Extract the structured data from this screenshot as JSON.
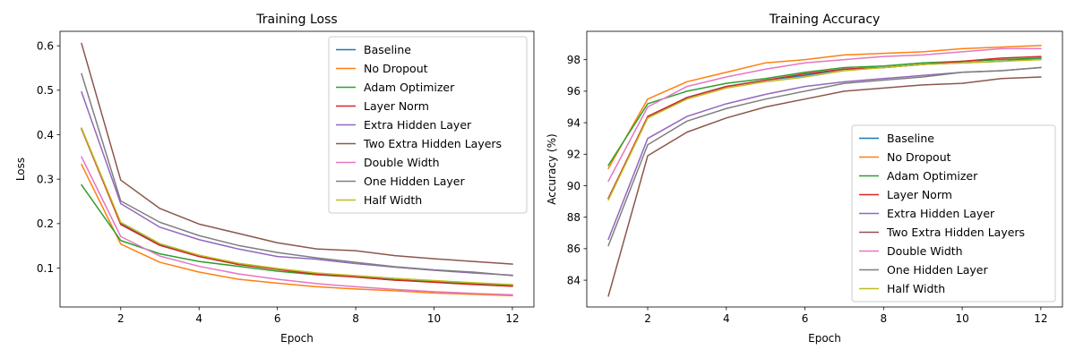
{
  "chart_data": [
    {
      "type": "line",
      "title": "Training Loss",
      "xlabel": "Epoch",
      "ylabel": "Loss",
      "xlim": [
        0.45,
        12.55
      ],
      "ylim": [
        0.0125,
        0.6325
      ],
      "xticks": [
        2,
        4,
        6,
        8,
        10,
        12
      ],
      "yticks": [
        0.1,
        0.2,
        0.3,
        0.4,
        0.5,
        0.6
      ],
      "ytick_labels": [
        "0.1",
        "0.2",
        "0.3",
        "0.4",
        "0.5",
        "0.6"
      ],
      "legend_position": "top-right",
      "grid": false,
      "x": [
        1,
        2,
        3,
        4,
        5,
        6,
        7,
        8,
        9,
        10,
        11,
        12
      ],
      "series": [
        {
          "name": "Baseline",
          "color": "#1f77b4",
          "values": [
            0.413,
            0.2,
            0.152,
            0.127,
            0.109,
            0.098,
            0.087,
            0.081,
            0.074,
            0.069,
            0.064,
            0.06
          ]
        },
        {
          "name": "No Dropout",
          "color": "#ff7f0e",
          "values": [
            0.333,
            0.154,
            0.113,
            0.091,
            0.075,
            0.066,
            0.058,
            0.053,
            0.049,
            0.044,
            0.041,
            0.038
          ]
        },
        {
          "name": "Adam Optimizer",
          "color": "#2ca02c",
          "values": [
            0.287,
            0.162,
            0.132,
            0.115,
            0.104,
            0.093,
            0.085,
            0.08,
            0.073,
            0.07,
            0.066,
            0.062
          ]
        },
        {
          "name": "Layer Norm",
          "color": "#d62728",
          "values": [
            0.413,
            0.198,
            0.151,
            0.126,
            0.108,
            0.097,
            0.086,
            0.08,
            0.073,
            0.068,
            0.063,
            0.059
          ]
        },
        {
          "name": "Extra Hidden Layer",
          "color": "#9467bd",
          "values": [
            0.496,
            0.245,
            0.192,
            0.164,
            0.143,
            0.126,
            0.12,
            0.11,
            0.102,
            0.095,
            0.089,
            0.084
          ]
        },
        {
          "name": "Two Extra Hidden Layers",
          "color": "#8c564b",
          "values": [
            0.605,
            0.298,
            0.234,
            0.199,
            0.178,
            0.157,
            0.143,
            0.139,
            0.128,
            0.121,
            0.115,
            0.109
          ]
        },
        {
          "name": "Double Width",
          "color": "#e377c2",
          "values": [
            0.35,
            0.171,
            0.127,
            0.104,
            0.087,
            0.075,
            0.065,
            0.058,
            0.052,
            0.047,
            0.043,
            0.04
          ]
        },
        {
          "name": "One Hidden Layer",
          "color": "#7f7f7f",
          "values": [
            0.537,
            0.251,
            0.203,
            0.173,
            0.151,
            0.135,
            0.123,
            0.113,
            0.103,
            0.096,
            0.091,
            0.083
          ]
        },
        {
          "name": "Half Width",
          "color": "#bcbd22",
          "values": [
            0.415,
            0.203,
            0.155,
            0.129,
            0.111,
            0.099,
            0.089,
            0.083,
            0.077,
            0.072,
            0.067,
            0.063
          ]
        }
      ]
    },
    {
      "type": "line",
      "title": "Training Accuracy",
      "xlabel": "Epoch",
      "ylabel": "Accuracy (%)",
      "xlim": [
        0.45,
        12.55
      ],
      "ylim": [
        82.3,
        99.8
      ],
      "xticks": [
        2,
        4,
        6,
        8,
        10,
        12
      ],
      "yticks": [
        84,
        86,
        88,
        90,
        92,
        94,
        96,
        98
      ],
      "ytick_labels": [
        "84",
        "86",
        "88",
        "90",
        "92",
        "94",
        "96",
        "98"
      ],
      "legend_position": "lower-right",
      "grid": false,
      "x": [
        1,
        2,
        3,
        4,
        5,
        6,
        7,
        8,
        9,
        10,
        11,
        12
      ],
      "series": [
        {
          "name": "Baseline",
          "color": "#1f77b4",
          "values": [
            89.2,
            94.3,
            95.6,
            96.3,
            96.7,
            97.0,
            97.4,
            97.5,
            97.7,
            97.8,
            97.9,
            98.1
          ]
        },
        {
          "name": "No Dropout",
          "color": "#ff7f0e",
          "values": [
            91.1,
            95.5,
            96.6,
            97.2,
            97.8,
            98.0,
            98.3,
            98.4,
            98.5,
            98.7,
            98.8,
            98.9
          ]
        },
        {
          "name": "Adam Optimizer",
          "color": "#2ca02c",
          "values": [
            91.3,
            95.2,
            96.0,
            96.5,
            96.8,
            97.2,
            97.5,
            97.6,
            97.8,
            97.9,
            98.0,
            98.1
          ]
        },
        {
          "name": "Layer Norm",
          "color": "#d62728",
          "values": [
            89.2,
            94.4,
            95.6,
            96.3,
            96.7,
            97.1,
            97.4,
            97.5,
            97.7,
            97.9,
            98.1,
            98.2
          ]
        },
        {
          "name": "Extra Hidden Layer",
          "color": "#9467bd",
          "values": [
            86.6,
            93.0,
            94.4,
            95.2,
            95.8,
            96.3,
            96.6,
            96.8,
            97.0,
            97.2,
            97.3,
            97.5
          ]
        },
        {
          "name": "Two Extra Hidden Layers",
          "color": "#8c564b",
          "values": [
            83.0,
            91.9,
            93.4,
            94.3,
            95.0,
            95.5,
            96.0,
            96.2,
            96.4,
            96.5,
            96.8,
            96.9
          ]
        },
        {
          "name": "Double Width",
          "color": "#e377c2",
          "values": [
            90.3,
            95.0,
            96.3,
            96.9,
            97.4,
            97.8,
            98.0,
            98.2,
            98.3,
            98.5,
            98.7,
            98.7
          ]
        },
        {
          "name": "One Hidden Layer",
          "color": "#7f7f7f",
          "values": [
            86.2,
            92.6,
            94.1,
            94.9,
            95.5,
            96.0,
            96.5,
            96.7,
            96.9,
            97.2,
            97.3,
            97.5
          ]
        },
        {
          "name": "Half Width",
          "color": "#bcbd22",
          "values": [
            89.1,
            94.3,
            95.5,
            96.2,
            96.6,
            96.9,
            97.3,
            97.5,
            97.7,
            97.8,
            97.9,
            98.0
          ]
        }
      ]
    }
  ]
}
